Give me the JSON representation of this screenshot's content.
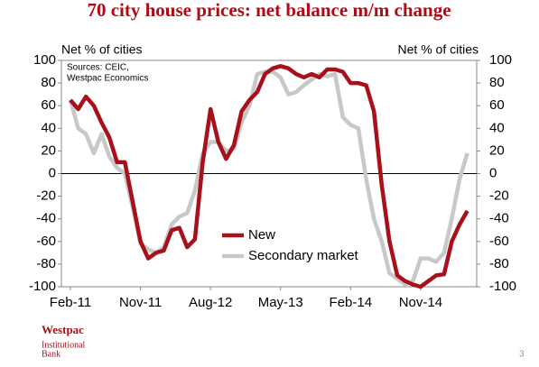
{
  "chart_data": {
    "type": "line",
    "title": "70 city house prices: net balance m/m change",
    "y_label": "Net % of cities",
    "y2_label": "Net % of cities",
    "source": [
      "Sources: CEIC,",
      "Westpac Economics"
    ],
    "categories": [
      "Feb-11",
      null,
      null,
      null,
      null,
      null,
      null,
      null,
      null,
      "Nov-11",
      null,
      null,
      null,
      null,
      null,
      null,
      null,
      null,
      "Aug-12",
      null,
      null,
      null,
      null,
      null,
      null,
      null,
      null,
      "May-13",
      null,
      null,
      null,
      null,
      null,
      null,
      null,
      null,
      "Feb-14",
      null,
      null,
      null,
      null,
      null,
      null,
      null,
      null,
      "Nov-14",
      null,
      null,
      null,
      null,
      null,
      null
    ],
    "series": [
      {
        "name": "New",
        "color": "#a8101c",
        "values": [
          65,
          57,
          68,
          60,
          45,
          32,
          10,
          10,
          -25,
          -60,
          -75,
          -70,
          -68,
          -50,
          -48,
          -65,
          -58,
          10,
          57,
          28,
          13,
          25,
          55,
          65,
          72,
          88,
          93,
          95,
          93,
          88,
          85,
          88,
          85,
          92,
          92,
          90,
          80,
          80,
          78,
          55,
          -10,
          -60,
          -90,
          -95,
          -98,
          -100,
          -95,
          -90,
          -89,
          -60,
          -45,
          -33
        ]
      },
      {
        "name": "Secondary market",
        "color": "#c8c8c8",
        "values": [
          65,
          40,
          35,
          18,
          35,
          15,
          5,
          0,
          -30,
          -62,
          -67,
          -70,
          -65,
          -45,
          -38,
          -35,
          -15,
          18,
          28,
          28,
          20,
          22,
          45,
          60,
          88,
          90,
          90,
          85,
          70,
          72,
          78,
          83,
          88,
          86,
          88,
          50,
          43,
          40,
          -5,
          -40,
          -60,
          -88,
          -93,
          -98,
          -95,
          -75,
          -75,
          -78,
          -70,
          -40,
          -5,
          18
        ]
      }
    ],
    "ylim": [
      -100,
      100
    ],
    "yticks": [
      -100,
      -80,
      -60,
      -40,
      -20,
      0,
      20,
      40,
      60,
      80,
      100
    ],
    "y2lim": [
      -100,
      100
    ],
    "y2ticks": [
      -100,
      -80,
      -60,
      -40,
      -20,
      0,
      20,
      40,
      60,
      80,
      100
    ],
    "grid": false
  },
  "footer": {
    "brand": "Westpac",
    "unit": [
      "Institutional",
      "Bank"
    ],
    "page": "3"
  }
}
